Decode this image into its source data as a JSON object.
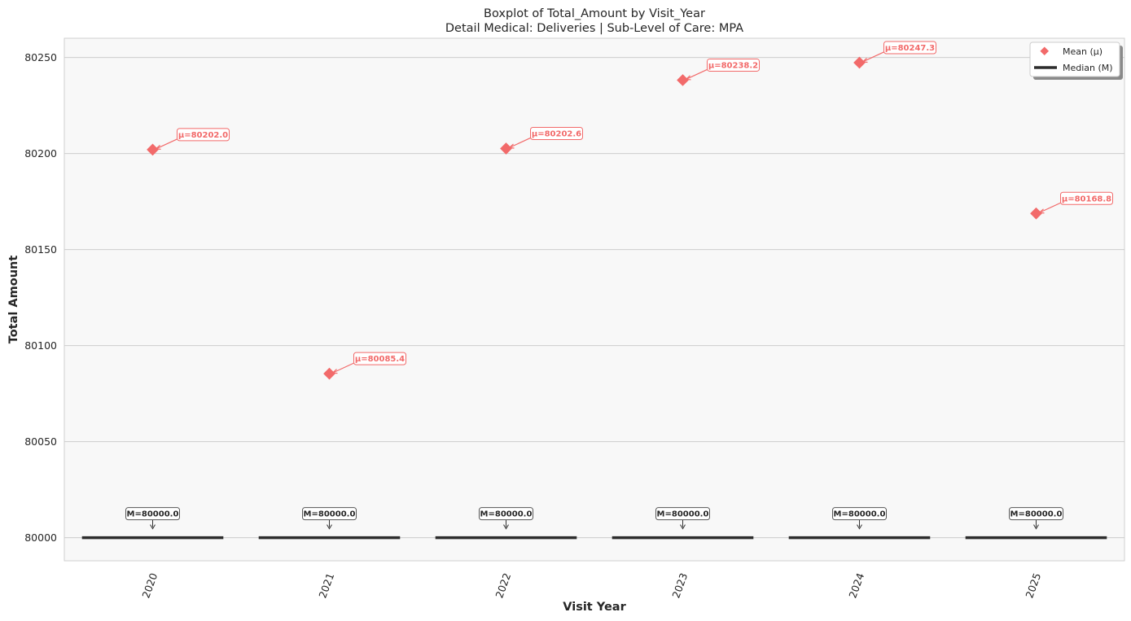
{
  "chart_data": {
    "type": "box",
    "title": "Boxplot of Total_Amount by Visit_Year",
    "subtitle": "Detail Medical: Deliveries | Sub-Level of Care: MPA",
    "xlabel": "Visit Year",
    "ylabel": "Total Amount",
    "categories": [
      "2020",
      "2021",
      "2022",
      "2023",
      "2024",
      "2025"
    ],
    "ylim": [
      79988,
      80260
    ],
    "yticks": [
      80000,
      80050,
      80100,
      80150,
      80200,
      80250
    ],
    "ytick_labels": [
      "80000",
      "80050",
      "80100",
      "80150",
      "80200",
      "80250"
    ],
    "grid": "horizontal",
    "legend_position": "top-right",
    "series": [
      {
        "name": "Mean (μ)",
        "marker": "diamond",
        "color": "#f26a6a",
        "values": [
          80202.0,
          80085.4,
          80202.6,
          80238.2,
          80247.3,
          80168.8
        ],
        "labels": [
          "μ=80202.0",
          "μ=80085.4",
          "μ=80202.6",
          "μ=80238.2",
          "μ=80247.3",
          "μ=80168.8"
        ]
      },
      {
        "name": "Median (M)",
        "marker": "line",
        "color": "#2d2d2d",
        "values": [
          80000.0,
          80000.0,
          80000.0,
          80000.0,
          80000.0,
          80000.0
        ],
        "labels": [
          "M=80000.0",
          "M=80000.0",
          "M=80000.0",
          "M=80000.0",
          "M=80000.0",
          "M=80000.0"
        ]
      }
    ],
    "colors": {
      "plot_background": "#f8f8f8",
      "gridline": "#cccccc",
      "mean": "#f26a6a",
      "median": "#2d2d2d"
    }
  }
}
